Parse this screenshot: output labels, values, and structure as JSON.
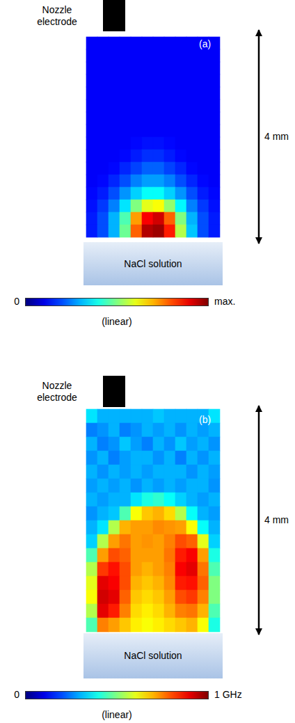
{
  "chart_data": [
    {
      "type": "heatmap",
      "panel_label": "(a)",
      "electrode_label": "Nozzle electrode",
      "solution_label": "NaCl solution",
      "scale_bar_label": "4 mm",
      "colorbar": {
        "range": [
          0,
          1
        ],
        "ticks": [
          0,
          {
            "value": 1,
            "label": "max."
          }
        ],
        "label": "(linear)"
      },
      "cells": [
        [
          0.12,
          0.12,
          0.12,
          0.12,
          0.12,
          0.12,
          0.12,
          0.12,
          0.12,
          0.12,
          0.12,
          0.12
        ],
        [
          0.12,
          0.12,
          0.12,
          0.12,
          0.12,
          0.12,
          0.12,
          0.12,
          0.12,
          0.12,
          0.12,
          0.12
        ],
        [
          0.12,
          0.12,
          0.12,
          0.12,
          0.12,
          0.12,
          0.12,
          0.12,
          0.12,
          0.12,
          0.12,
          0.12
        ],
        [
          0.12,
          0.12,
          0.12,
          0.12,
          0.12,
          0.12,
          0.12,
          0.12,
          0.12,
          0.12,
          0.12,
          0.12
        ],
        [
          0.12,
          0.12,
          0.12,
          0.12,
          0.12,
          0.12,
          0.12,
          0.12,
          0.12,
          0.12,
          0.12,
          0.12
        ],
        [
          0.12,
          0.12,
          0.12,
          0.12,
          0.12,
          0.12,
          0.12,
          0.12,
          0.12,
          0.12,
          0.12,
          0.12
        ],
        [
          0.12,
          0.12,
          0.12,
          0.12,
          0.12,
          0.12,
          0.12,
          0.12,
          0.12,
          0.12,
          0.12,
          0.12
        ],
        [
          0.12,
          0.12,
          0.12,
          0.12,
          0.12,
          0.12,
          0.12,
          0.12,
          0.12,
          0.12,
          0.12,
          0.12
        ],
        [
          0.12,
          0.12,
          0.12,
          0.12,
          0.13,
          0.14,
          0.14,
          0.13,
          0.12,
          0.12,
          0.12,
          0.12
        ],
        [
          0.12,
          0.12,
          0.12,
          0.13,
          0.15,
          0.17,
          0.17,
          0.15,
          0.13,
          0.12,
          0.12,
          0.12
        ],
        [
          0.12,
          0.12,
          0.13,
          0.16,
          0.19,
          0.22,
          0.22,
          0.19,
          0.16,
          0.13,
          0.12,
          0.12
        ],
        [
          0.12,
          0.13,
          0.16,
          0.2,
          0.25,
          0.28,
          0.28,
          0.25,
          0.2,
          0.16,
          0.13,
          0.12
        ],
        [
          0.13,
          0.15,
          0.2,
          0.27,
          0.33,
          0.38,
          0.38,
          0.33,
          0.27,
          0.2,
          0.15,
          0.13
        ],
        [
          0.14,
          0.18,
          0.25,
          0.35,
          0.5,
          0.6,
          0.62,
          0.52,
          0.37,
          0.25,
          0.18,
          0.14
        ],
        [
          0.15,
          0.2,
          0.3,
          0.45,
          0.72,
          0.88,
          0.92,
          0.78,
          0.5,
          0.3,
          0.2,
          0.15
        ],
        [
          0.15,
          0.2,
          0.3,
          0.48,
          0.78,
          0.95,
          0.97,
          0.85,
          0.55,
          0.32,
          0.2,
          0.15
        ]
      ]
    },
    {
      "type": "heatmap",
      "panel_label": "(b)",
      "electrode_label": "Nozzle electrode",
      "solution_label": "NaCl solution",
      "scale_bar_label": "4 mm",
      "colorbar": {
        "range": [
          0,
          1
        ],
        "ticks": [
          0,
          {
            "value": 1,
            "label": "1 GHz"
          }
        ],
        "label": "(linear)"
      },
      "cells": [
        [
          0.35,
          0.3,
          0.3,
          0.3,
          0.3,
          0.3,
          0.32,
          0.3,
          0.3,
          0.3,
          0.3,
          0.35
        ],
        [
          0.25,
          0.27,
          0.3,
          0.25,
          0.27,
          0.3,
          0.28,
          0.3,
          0.27,
          0.3,
          0.28,
          0.3
        ],
        [
          0.3,
          0.25,
          0.27,
          0.32,
          0.28,
          0.25,
          0.3,
          0.27,
          0.32,
          0.28,
          0.3,
          0.27
        ],
        [
          0.27,
          0.3,
          0.25,
          0.28,
          0.3,
          0.3,
          0.27,
          0.3,
          0.25,
          0.3,
          0.27,
          0.3
        ],
        [
          0.3,
          0.27,
          0.3,
          0.28,
          0.3,
          0.28,
          0.3,
          0.3,
          0.3,
          0.27,
          0.3,
          0.28
        ],
        [
          0.28,
          0.3,
          0.28,
          0.3,
          0.27,
          0.3,
          0.28,
          0.3,
          0.28,
          0.3,
          0.3,
          0.27
        ],
        [
          0.3,
          0.28,
          0.3,
          0.3,
          0.35,
          0.4,
          0.42,
          0.38,
          0.33,
          0.3,
          0.28,
          0.3
        ],
        [
          0.27,
          0.3,
          0.32,
          0.45,
          0.62,
          0.68,
          0.7,
          0.66,
          0.55,
          0.38,
          0.3,
          0.28
        ],
        [
          0.3,
          0.35,
          0.55,
          0.7,
          0.72,
          0.72,
          0.74,
          0.73,
          0.72,
          0.62,
          0.38,
          0.3
        ],
        [
          0.33,
          0.55,
          0.72,
          0.76,
          0.72,
          0.73,
          0.72,
          0.75,
          0.8,
          0.78,
          0.6,
          0.33
        ],
        [
          0.45,
          0.72,
          0.8,
          0.78,
          0.72,
          0.72,
          0.72,
          0.76,
          0.85,
          0.88,
          0.72,
          0.4
        ],
        [
          0.55,
          0.82,
          0.86,
          0.8,
          0.72,
          0.7,
          0.72,
          0.75,
          0.88,
          0.9,
          0.76,
          0.45
        ],
        [
          0.6,
          0.9,
          0.88,
          0.8,
          0.7,
          0.68,
          0.7,
          0.74,
          0.85,
          0.86,
          0.78,
          0.5
        ],
        [
          0.62,
          0.92,
          0.9,
          0.78,
          0.68,
          0.66,
          0.68,
          0.72,
          0.8,
          0.82,
          0.75,
          0.5
        ],
        [
          0.55,
          0.9,
          0.85,
          0.75,
          0.66,
          0.64,
          0.66,
          0.7,
          0.75,
          0.76,
          0.7,
          0.45
        ],
        [
          0.45,
          0.75,
          0.72,
          0.68,
          0.64,
          0.62,
          0.64,
          0.66,
          0.68,
          0.7,
          0.62,
          0.4
        ]
      ]
    }
  ]
}
